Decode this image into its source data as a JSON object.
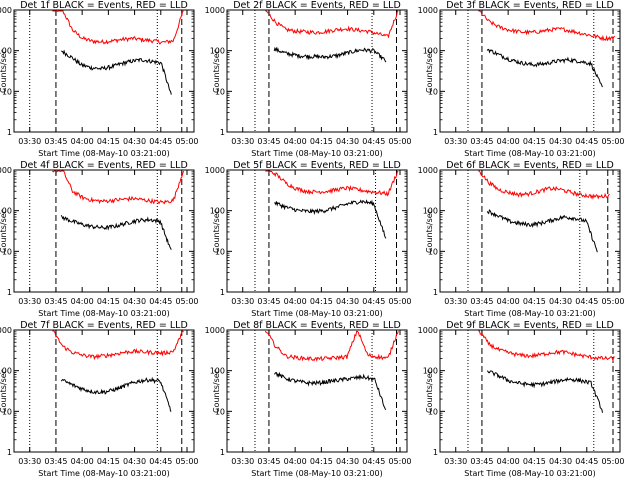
{
  "chart_data": [
    {
      "type": "line",
      "title": "Det 1f BLACK = Events, RED = LLD",
      "xlabel": "Start Time (08-May-10 03:21:00)",
      "ylabel": "Counts/sec",
      "yscale": "log",
      "ylim": [
        1,
        1000
      ],
      "x_ticks": [
        "03:30",
        "03:45",
        "04:00",
        "04:15",
        "04:30",
        "04:45",
        "05:00"
      ],
      "y_ticks": [
        "1",
        "10",
        "100",
        "1000"
      ],
      "series": [
        {
          "color": "#ff0000",
          "values": [
            1000,
            1000,
            320,
            200,
            170,
            165,
            175,
            190,
            200,
            185,
            175,
            160,
            175,
            1000
          ]
        },
        {
          "color": "#000000",
          "values": [
            100,
            70,
            45,
            38,
            36,
            40,
            48,
            55,
            60,
            55,
            50,
            8
          ]
        }
      ],
      "markers": {
        "dotted": [
          "03:30",
          "04:43"
        ],
        "dashed": [
          "03:45",
          "04:57"
        ]
      }
    },
    {
      "type": "line",
      "title": "Det 2f BLACK = Events, RED = LLD",
      "xlabel": "Start Time (08-May-10 03:21:00)",
      "ylabel": "Counts/sec",
      "yscale": "log",
      "ylim": [
        1,
        1000
      ],
      "x_ticks": [
        "03:30",
        "03:45",
        "04:00",
        "04:15",
        "04:30",
        "04:45",
        "05:00"
      ],
      "y_ticks": [
        "1",
        "10",
        "100",
        "1000"
      ],
      "series": [
        {
          "color": "#ff0000",
          "values": [
            1000,
            500,
            330,
            300,
            290,
            280,
            300,
            330,
            350,
            320,
            300,
            260,
            220,
            1000
          ]
        },
        {
          "color": "#000000",
          "values": [
            110,
            85,
            75,
            72,
            70,
            75,
            90,
            105,
            100,
            55
          ]
        }
      ],
      "markers": {
        "dotted": [
          "03:37",
          "04:44"
        ],
        "dashed": [
          "03:45",
          "04:58"
        ]
      }
    },
    {
      "type": "line",
      "title": "Det 3f BLACK = Events, RED = LLD",
      "xlabel": "Start Time (08-May-10 03:21:00)",
      "ylabel": "Counts/sec",
      "yscale": "log",
      "ylim": [
        1,
        1000
      ],
      "x_ticks": [
        "03:30",
        "03:45",
        "04:00",
        "04:15",
        "04:30",
        "04:45",
        "05:00"
      ],
      "y_ticks": [
        "1",
        "10",
        "100",
        "1000"
      ],
      "series": [
        {
          "color": "#ff0000",
          "values": [
            1000,
            520,
            380,
            320,
            290,
            280,
            300,
            330,
            340,
            300,
            260,
            230,
            200,
            210
          ]
        },
        {
          "color": "#000000",
          "values": [
            110,
            80,
            60,
            50,
            45,
            48,
            55,
            60,
            55,
            48,
            12
          ]
        }
      ],
      "markers": {
        "dotted": [
          "03:37",
          "04:49"
        ],
        "dashed": [
          "03:45",
          "05:00"
        ]
      }
    },
    {
      "type": "line",
      "title": "Det 4f BLACK = Events, RED = LLD",
      "xlabel": "Start Time (08-May-10 03:21:00)",
      "ylabel": "Counts/sec",
      "yscale": "log",
      "ylim": [
        1,
        1000
      ],
      "x_ticks": [
        "03:30",
        "03:45",
        "04:00",
        "04:15",
        "04:30",
        "04:45",
        "05:00"
      ],
      "y_ticks": [
        "1",
        "10",
        "100",
        "1000"
      ],
      "series": [
        {
          "color": "#ff0000",
          "values": [
            1000,
            1000,
            300,
            210,
            180,
            170,
            180,
            190,
            200,
            185,
            170,
            160,
            180,
            1000
          ]
        },
        {
          "color": "#000000",
          "values": [
            70,
            55,
            45,
            40,
            38,
            42,
            50,
            58,
            60,
            55,
            10
          ]
        }
      ],
      "markers": {
        "dotted": [
          "03:30",
          "04:43"
        ],
        "dashed": [
          "03:45",
          "04:57"
        ]
      }
    },
    {
      "type": "line",
      "title": "Det 5f BLACK = Events, RED = LLD",
      "xlabel": "Start Time (08-May-10 03:21:00)",
      "ylabel": "Counts/sec",
      "yscale": "log",
      "ylim": [
        1,
        1000
      ],
      "x_ticks": [
        "03:30",
        "03:45",
        "04:00",
        "04:15",
        "04:30",
        "04:45",
        "05:00"
      ],
      "y_ticks": [
        "1",
        "10",
        "100",
        "1000"
      ],
      "series": [
        {
          "color": "#ff0000",
          "values": [
            1000,
            800,
            480,
            350,
            300,
            290,
            300,
            330,
            360,
            330,
            300,
            280,
            260,
            1000
          ]
        },
        {
          "color": "#000000",
          "values": [
            160,
            120,
            100,
            95,
            100,
            120,
            150,
            170,
            150,
            20
          ]
        }
      ],
      "markers": {
        "dotted": [
          "03:37",
          "04:46"
        ],
        "dashed": [
          "03:45",
          "04:58"
        ]
      }
    },
    {
      "type": "line",
      "title": "Det 6f BLACK = Events, RED = LLD",
      "xlabel": "Start Time (08-May-10 03:21:00)",
      "ylabel": "Counts/sec",
      "yscale": "log",
      "ylim": [
        1,
        1000
      ],
      "x_ticks": [
        "03:30",
        "03:45",
        "04:00",
        "04:15",
        "04:30",
        "04:45",
        "05:00"
      ],
      "y_ticks": [
        "1",
        "10",
        "100",
        "1000"
      ],
      "series": [
        {
          "color": "#ff0000",
          "values": [
            1000,
            500,
            330,
            280,
            250,
            260,
            300,
            350,
            340,
            290,
            250,
            230,
            220,
            240
          ]
        },
        {
          "color": "#000000",
          "values": [
            100,
            75,
            55,
            48,
            45,
            50,
            60,
            70,
            65,
            55,
            10
          ]
        }
      ],
      "markers": {
        "dotted": [
          "03:37",
          "04:41"
        ],
        "dashed": [
          "03:45",
          "04:57"
        ]
      }
    },
    {
      "type": "line",
      "title": "Det 7f BLACK = Events, RED = LLD",
      "xlabel": "Start Time (08-May-10 03:21:00)",
      "ylabel": "Counts/sec",
      "yscale": "log",
      "ylim": [
        1,
        1000
      ],
      "x_ticks": [
        "03:30",
        "03:45",
        "04:00",
        "04:15",
        "04:30",
        "04:45",
        "05:00"
      ],
      "y_ticks": [
        "1",
        "10",
        "100",
        "1000"
      ],
      "series": [
        {
          "color": "#ff0000",
          "values": [
            1000,
            400,
            280,
            240,
            220,
            230,
            250,
            280,
            300,
            290,
            280,
            270,
            300,
            1000
          ]
        },
        {
          "color": "#000000",
          "values": [
            60,
            45,
            35,
            30,
            30,
            35,
            45,
            55,
            60,
            55,
            10
          ]
        }
      ],
      "markers": {
        "dotted": [
          "03:30",
          "04:43"
        ],
        "dashed": [
          "03:45",
          "04:57"
        ]
      }
    },
    {
      "type": "line",
      "title": "Det 8f BLACK = Events, RED = LLD",
      "xlabel": "Start Time (08-May-10 03:21:00)",
      "ylabel": "Counts/sec",
      "yscale": "log",
      "ylim": [
        1,
        1000
      ],
      "x_ticks": [
        "03:30",
        "03:45",
        "04:00",
        "04:15",
        "04:30",
        "04:45",
        "05:00"
      ],
      "y_ticks": [
        "1",
        "10",
        "100",
        "1000"
      ],
      "series": [
        {
          "color": "#ff0000",
          "values": [
            1000,
            400,
            230,
            210,
            200,
            195,
            200,
            210,
            220,
            1000,
            240,
            220,
            200,
            1000
          ]
        },
        {
          "color": "#000000",
          "values": [
            90,
            65,
            55,
            50,
            50,
            55,
            60,
            65,
            70,
            60,
            10
          ]
        }
      ],
      "markers": {
        "dotted": [
          "03:37",
          "04:44"
        ],
        "dashed": [
          "03:45",
          "04:58"
        ]
      }
    },
    {
      "type": "line",
      "title": "Det 9f BLACK = Events, RED = LLD",
      "xlabel": "Start Time (08-May-10 03:21:00)",
      "ylabel": "Counts/sec",
      "yscale": "log",
      "ylim": [
        1,
        1000
      ],
      "x_ticks": [
        "03:30",
        "03:45",
        "04:00",
        "04:15",
        "04:30",
        "04:45",
        "05:00"
      ],
      "y_ticks": [
        "1",
        "10",
        "100",
        "1000"
      ],
      "series": [
        {
          "color": "#ff0000",
          "values": [
            1000,
            450,
            320,
            270,
            240,
            230,
            250,
            280,
            290,
            260,
            230,
            210,
            200,
            200
          ]
        },
        {
          "color": "#000000",
          "values": [
            100,
            75,
            55,
            48,
            45,
            48,
            55,
            62,
            58,
            50,
            10
          ]
        }
      ],
      "markers": {
        "dotted": [
          "03:37",
          "04:49"
        ],
        "dashed": [
          "03:45",
          "05:00"
        ]
      }
    }
  ]
}
